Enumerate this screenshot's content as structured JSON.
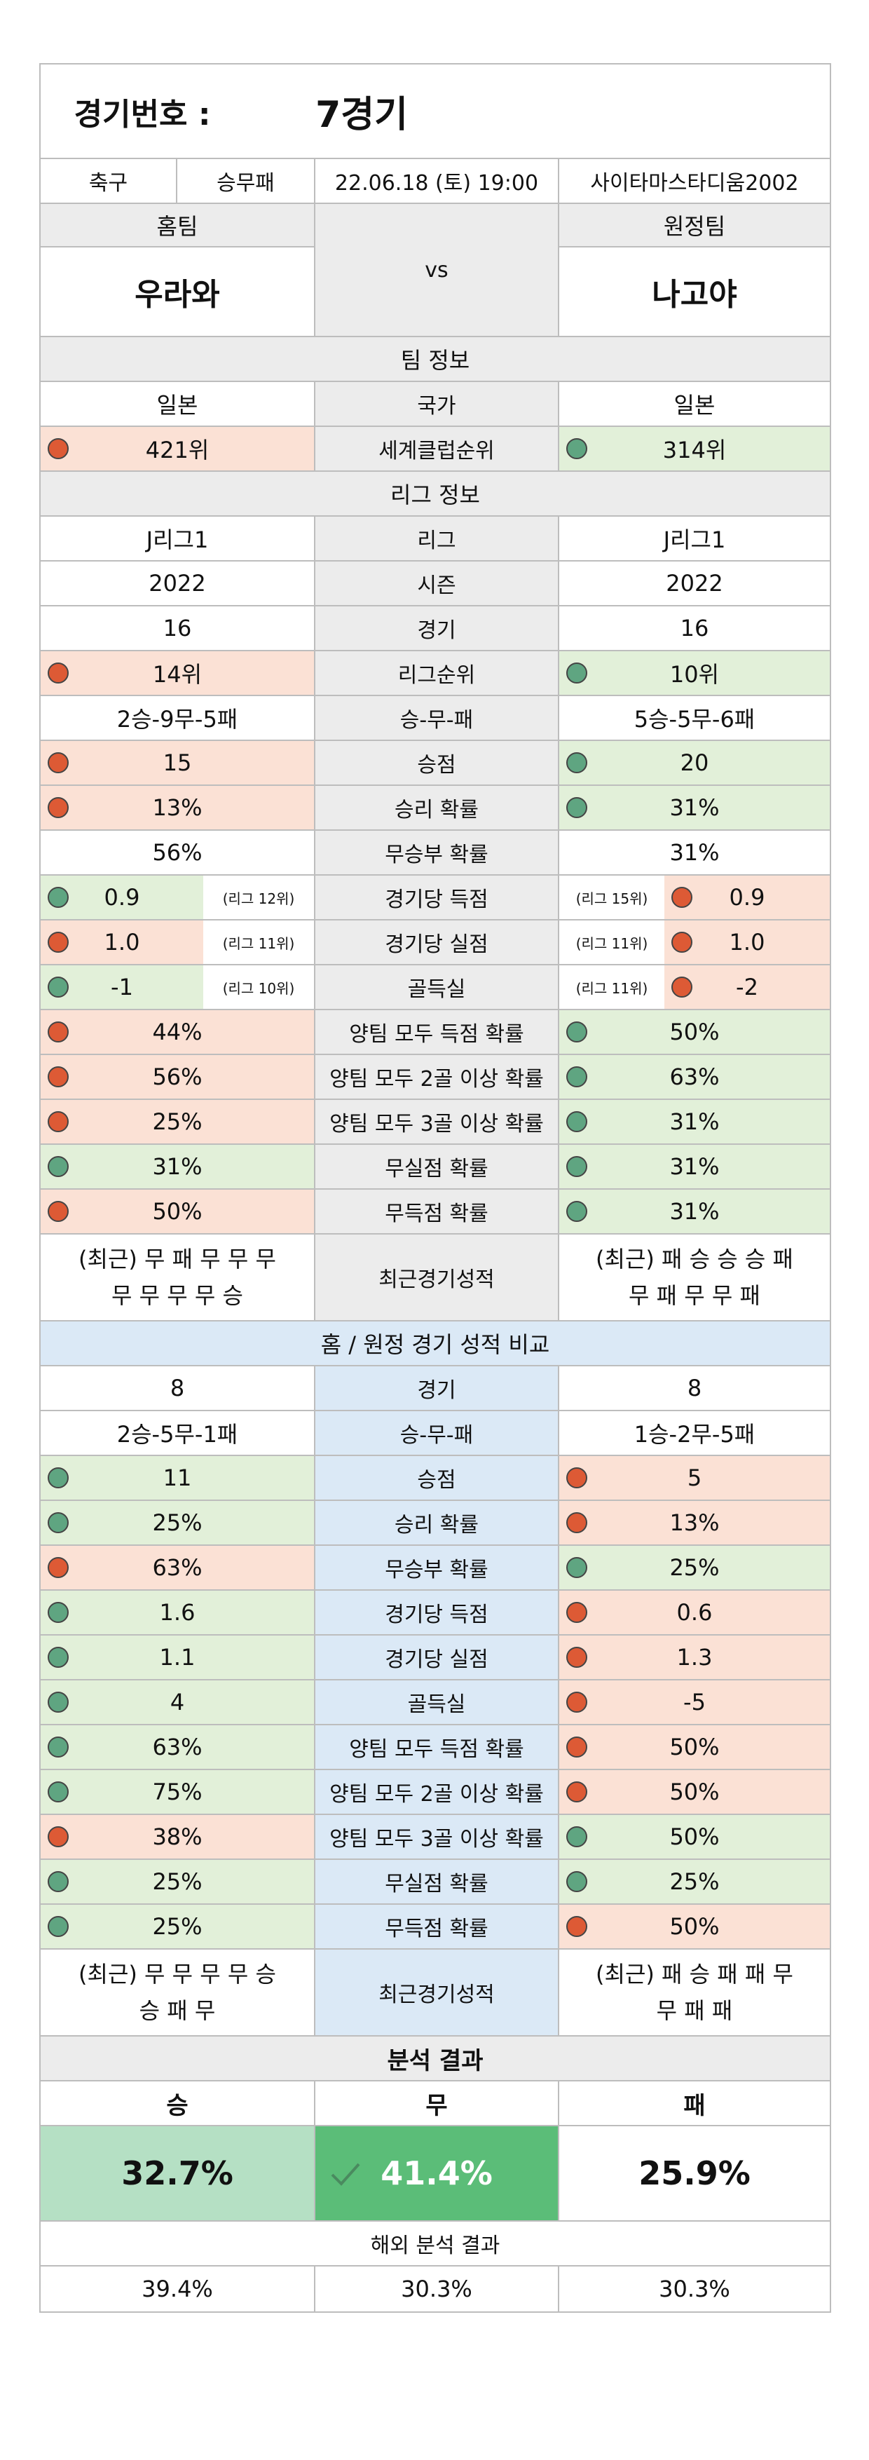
{
  "header": {
    "label": "경기번호 :",
    "match_no": "7경기"
  },
  "info": {
    "sport": "축구",
    "bet_type": "승무패",
    "datetime": "22.06.18 (토) 19:00",
    "venue": "사이타마스타디움2002"
  },
  "teams": {
    "home_label": "홈팀",
    "away_label": "원정팀",
    "vs": "vs",
    "home_name": "우라와",
    "away_name": "나고야"
  },
  "team_info": {
    "title": "팀 정보",
    "rows": [
      {
        "label": "국가",
        "home": "일본",
        "away": "일본"
      },
      {
        "label": "세계클럽순위",
        "home": "421위",
        "away": "314위",
        "home_dot": "red",
        "away_dot": "green"
      }
    ]
  },
  "league_info": {
    "title": "리그 정보",
    "rows": [
      {
        "label": "리그",
        "home": "J리그1",
        "away": "J리그1"
      },
      {
        "label": "시즌",
        "home": "2022",
        "away": "2022"
      },
      {
        "label": "경기",
        "home": "16",
        "away": "16"
      },
      {
        "label": "리그순위",
        "home": "14위",
        "away": "10위"
      },
      {
        "label": "승-무-패",
        "home": "2승-9무-5패",
        "away": "5승-5무-6패"
      },
      {
        "label": "승점",
        "home": "15",
        "away": "20"
      },
      {
        "label": "승리 확률",
        "home": "13%",
        "away": "31%"
      },
      {
        "label": "무승부 확률",
        "home": "56%",
        "away": "31%"
      },
      {
        "label": "경기당 득점",
        "home": "0.9",
        "away": "0.9",
        "home_rank": "(리그 12위)",
        "away_rank": "(리그 15위)"
      },
      {
        "label": "경기당 실점",
        "home": "1.0",
        "away": "1.0",
        "home_rank": "(리그 11위)",
        "away_rank": "(리그 11위)"
      },
      {
        "label": "골득실",
        "home": "-1",
        "away": "-2",
        "home_rank": "(리그 10위)",
        "away_rank": "(리그 11위)"
      },
      {
        "label": "양팀 모두 득점 확률",
        "home": "44%",
        "away": "50%"
      },
      {
        "label": "양팀 모두 2골 이상 확률",
        "home": "56%",
        "away": "63%"
      },
      {
        "label": "양팀 모두 3골 이상 확률",
        "home": "25%",
        "away": "31%"
      },
      {
        "label": "무실점 확률",
        "home": "31%",
        "away": "31%"
      },
      {
        "label": "무득점 확률",
        "home": "50%",
        "away": "31%"
      }
    ],
    "recent_label": "최근경기성적",
    "home_recent": [
      "(최근) 무 패 무 무 무",
      "무 무 무 무 승"
    ],
    "away_recent": [
      "(최근) 패 승 승 승 패",
      "무 패 무 무 패"
    ]
  },
  "compare": {
    "title": "홈 / 원정 경기 성적 비교",
    "rows": [
      {
        "label": "경기",
        "home": "8",
        "away": "8"
      },
      {
        "label": "승-무-패",
        "home": "2승-5무-1패",
        "away": "1승-2무-5패"
      },
      {
        "label": "승점",
        "home": "11",
        "away": "5"
      },
      {
        "label": "승리 확률",
        "home": "25%",
        "away": "13%"
      },
      {
        "label": "무승부 확률",
        "home": "63%",
        "away": "25%"
      },
      {
        "label": "경기당 득점",
        "home": "1.6",
        "away": "0.6"
      },
      {
        "label": "경기당 실점",
        "home": "1.1",
        "away": "1.3"
      },
      {
        "label": "골득실",
        "home": "4",
        "away": "-5"
      },
      {
        "label": "양팀 모두 득점 확률",
        "home": "63%",
        "away": "50%"
      },
      {
        "label": "양팀 모두 2골 이상 확률",
        "home": "75%",
        "away": "50%"
      },
      {
        "label": "양팀 모두 3골 이상 확률",
        "home": "38%",
        "away": "50%"
      },
      {
        "label": "무실점 확률",
        "home": "25%",
        "away": "25%"
      },
      {
        "label": "무득점 확률",
        "home": "25%",
        "away": "50%"
      }
    ],
    "recent_label": "최근경기성적",
    "home_recent": [
      "(최근) 무 무 무 무 승",
      "승 패 무"
    ],
    "away_recent": [
      "(최근) 패 승 패 패 무",
      "무 패 패"
    ]
  },
  "analysis": {
    "title": "분석 결과",
    "win_label": "승",
    "draw_label": "무",
    "loss_label": "패",
    "win": "32.7%",
    "draw": "41.4%",
    "loss": "25.9%",
    "overseas_title": "해외 분석 결과",
    "overseas_win": "39.4%",
    "overseas_draw": "30.3%",
    "overseas_loss": "30.3%"
  },
  "colors": {
    "dot_red": "#dd5a35",
    "dot_green": "#5fa581",
    "bg_red": "#fbe1d5",
    "bg_green": "#e2f0d9",
    "bg_blue": "#dbe9f6",
    "bg_gray": "#ececec",
    "highlight": "#5bbd78"
  }
}
